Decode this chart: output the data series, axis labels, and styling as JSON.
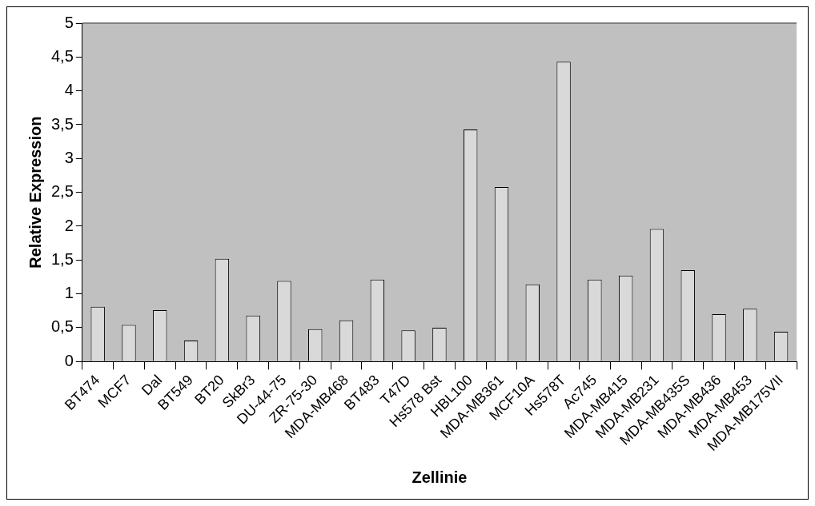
{
  "chart_data": {
    "type": "bar",
    "xlabel": "Zellinie",
    "ylabel": "Relative Expression",
    "categories": [
      "BT474",
      "MCF7",
      "Dal",
      "BT549",
      "BT20",
      "SkBr3",
      "DU-44-75",
      "ZR-75-30",
      "MDA-MB468",
      "BT483",
      "T47D",
      "Hs578 Bst",
      "HBL100",
      "MDA-MB361",
      "MCF10A",
      "Hs578T",
      "Ac745",
      "MDA-MB415",
      "MDA-MB231",
      "MDA-MB435S",
      "MDA-MB436",
      "MDA-MB453",
      "MDA-MB175VII"
    ],
    "values": [
      0.81,
      0.54,
      0.76,
      0.31,
      1.52,
      0.68,
      1.19,
      0.48,
      0.61,
      1.21,
      0.46,
      0.5,
      3.43,
      2.58,
      1.14,
      4.43,
      1.21,
      1.27,
      1.96,
      1.35,
      0.7,
      0.78,
      0.44
    ],
    "color": "#d9d9d9",
    "ylim": [
      0,
      5
    ],
    "yticks": [
      0,
      {
        "value": 0.5,
        "label": "0,5"
      },
      1,
      {
        "value": 1.5,
        "label": "1,5"
      },
      2,
      {
        "value": 2.5,
        "label": "2,5"
      },
      3,
      {
        "value": 3.5,
        "label": "3,5"
      },
      4,
      {
        "value": 4.5,
        "label": "4,5"
      },
      5
    ],
    "grid": false,
    "legend": false
  }
}
